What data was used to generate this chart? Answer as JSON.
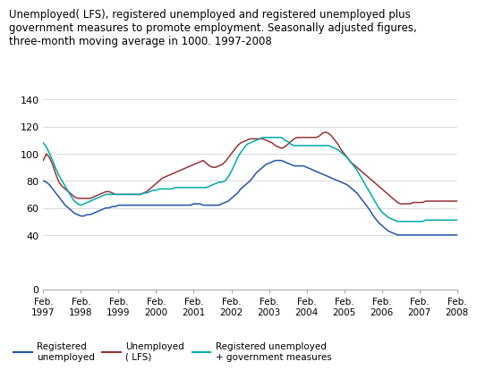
{
  "title_line1": "Unemployed( LFS), registered unemployed and registered unemployed plus",
  "title_line2": "government measures to promote employment. Seasonally adjusted figures,",
  "title_line3": "three-month moving average in 1000. 1997-2008",
  "title_fontsize": 8.5,
  "ylim": [
    0,
    140
  ],
  "yticks": [
    0,
    40,
    60,
    80,
    100,
    120,
    140
  ],
  "xtick_labels": [
    "Feb.\n1997",
    "Feb.\n1998",
    "Feb.\n1999",
    "Feb.\n2000",
    "Feb.\n2001",
    "Feb.\n2002",
    "Feb.\n2003",
    "Feb.\n2004",
    "Feb.\n2005",
    "Feb.\n2006",
    "Feb.\n2007",
    "Feb.\n2008"
  ],
  "colors": {
    "registered_unemployed": "#2255aa",
    "lfs": "#993333",
    "registered_plus_gov": "#00aaaa"
  },
  "legend_labels": [
    "Registered\nunemployed",
    "Unemployed\n( LFS)",
    "Registered unemployed\n+ government measures"
  ],
  "n_points": 133,
  "registered_unemployed": [
    80,
    79,
    77,
    74,
    71,
    68,
    65,
    62,
    60,
    58,
    56,
    55,
    54,
    54,
    55,
    55,
    56,
    57,
    58,
    59,
    60,
    60,
    61,
    61,
    62,
    62,
    62,
    62,
    62,
    62,
    62,
    62,
    62,
    62,
    62,
    62,
    62,
    62,
    62,
    62,
    62,
    62,
    62,
    62,
    62,
    62,
    62,
    62,
    63,
    63,
    63,
    62,
    62,
    62,
    62,
    62,
    62,
    63,
    64,
    65,
    67,
    69,
    71,
    74,
    76,
    78,
    80,
    83,
    86,
    88,
    90,
    92,
    93,
    94,
    95,
    95,
    95,
    94,
    93,
    92,
    91,
    91,
    91,
    91,
    90,
    89,
    88,
    87,
    86,
    85,
    84,
    83,
    82,
    81,
    80,
    79,
    78,
    77,
    75,
    73,
    71,
    68,
    65,
    62,
    59,
    55,
    52,
    49,
    47,
    45,
    43,
    42,
    41,
    40,
    40,
    40,
    40,
    40,
    40,
    40,
    40,
    40,
    40,
    40,
    40,
    40,
    40,
    40,
    40,
    40,
    40,
    40,
    40
  ],
  "lfs": [
    95,
    100,
    97,
    92,
    85,
    79,
    76,
    74,
    72,
    70,
    68,
    67,
    67,
    67,
    67,
    67,
    68,
    69,
    70,
    71,
    72,
    72,
    71,
    70,
    70,
    70,
    70,
    70,
    70,
    70,
    70,
    70,
    71,
    72,
    74,
    76,
    78,
    80,
    82,
    83,
    84,
    85,
    86,
    87,
    88,
    89,
    90,
    91,
    92,
    93,
    94,
    95,
    93,
    91,
    90,
    90,
    91,
    92,
    94,
    97,
    100,
    103,
    106,
    108,
    109,
    110,
    111,
    111,
    111,
    111,
    111,
    110,
    109,
    108,
    106,
    105,
    104,
    105,
    107,
    109,
    111,
    112,
    112,
    112,
    112,
    112,
    112,
    112,
    113,
    115,
    116,
    115,
    113,
    110,
    107,
    103,
    100,
    97,
    94,
    92,
    90,
    88,
    86,
    84,
    82,
    80,
    78,
    76,
    74,
    72,
    70,
    68,
    66,
    64,
    63,
    63,
    63,
    63,
    64,
    64,
    64,
    64,
    65,
    65,
    65,
    65,
    65,
    65,
    65,
    65,
    65,
    65,
    65
  ],
  "registered_plus_gov": [
    108,
    105,
    100,
    95,
    89,
    84,
    80,
    76,
    72,
    68,
    65,
    63,
    62,
    63,
    64,
    65,
    66,
    67,
    68,
    69,
    70,
    70,
    70,
    70,
    70,
    70,
    70,
    70,
    70,
    70,
    70,
    70,
    71,
    71,
    72,
    73,
    73,
    74,
    74,
    74,
    74,
    74,
    75,
    75,
    75,
    75,
    75,
    75,
    75,
    75,
    75,
    75,
    75,
    76,
    77,
    78,
    79,
    79,
    80,
    83,
    87,
    92,
    97,
    101,
    104,
    107,
    108,
    109,
    110,
    111,
    112,
    112,
    112,
    112,
    112,
    112,
    112,
    110,
    109,
    107,
    106,
    106,
    106,
    106,
    106,
    106,
    106,
    106,
    106,
    106,
    106,
    106,
    105,
    104,
    103,
    101,
    99,
    97,
    94,
    91,
    88,
    84,
    80,
    76,
    72,
    68,
    64,
    60,
    57,
    55,
    53,
    52,
    51,
    50,
    50,
    50,
    50,
    50,
    50,
    50,
    50,
    50,
    51,
    51,
    51,
    51,
    51,
    51,
    51,
    51,
    51,
    51,
    51
  ]
}
